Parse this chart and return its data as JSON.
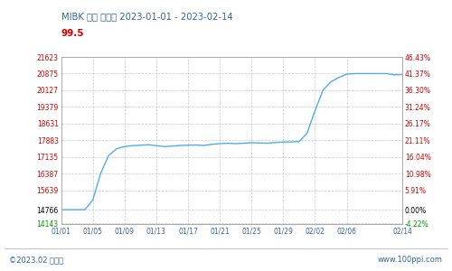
{
  "title": "MIBK 国内 混合价 2023-01-01 - 2023-02-14",
  "subtitle": "99.5",
  "left_yticks": [
    14143,
    14766,
    15639,
    16387,
    17135,
    17883,
    18631,
    19379,
    20127,
    20875,
    21623
  ],
  "right_yticks_pct": [
    "-4.22%",
    "0.00%",
    "5.91%",
    "10.98%",
    "16.04%",
    "21.11%",
    "26.17%",
    "31.24%",
    "36.30%",
    "41.37%",
    "46.43%"
  ],
  "right_yticks_val": [
    -4.22,
    0.0,
    5.91,
    10.98,
    16.04,
    21.11,
    26.17,
    31.24,
    36.3,
    41.37,
    46.43
  ],
  "xtick_labels": [
    "01/01",
    "01/05",
    "01/09",
    "01/13",
    "01/17",
    "01/21",
    "01/25",
    "01/29",
    "02/02",
    "02/06",
    "02/14"
  ],
  "base_value": 14766,
  "x_data": [
    0,
    1,
    2,
    3,
    4,
    5,
    6,
    7,
    8,
    9,
    10,
    11,
    12,
    13,
    14,
    15,
    16,
    17,
    18,
    19,
    20,
    21,
    22,
    23,
    24,
    25,
    26,
    27,
    28,
    29,
    30,
    31,
    32,
    33,
    34,
    35,
    36,
    37,
    38,
    39,
    40,
    41,
    42,
    43
  ],
  "price_data": [
    14766,
    14766,
    14766,
    14766,
    15200,
    16400,
    17200,
    17500,
    17600,
    17640,
    17660,
    17680,
    17640,
    17600,
    17620,
    17650,
    17660,
    17670,
    17650,
    17700,
    17730,
    17750,
    17730,
    17750,
    17770,
    17760,
    17750,
    17780,
    17800,
    17810,
    17820,
    18200,
    19200,
    20127,
    20500,
    20700,
    20850,
    20875,
    20875,
    20875,
    20875,
    20875,
    20820,
    20830
  ],
  "xtick_positions": [
    0,
    4,
    8,
    12,
    16,
    20,
    24,
    28,
    32,
    36,
    43
  ],
  "line_color": "#4daee8",
  "bg_color": "#ffffff",
  "plot_bg_color": "#ffffff",
  "grid_color": "#c8c8c8",
  "title_color": "#336699",
  "subtitle_color": "#cc0000",
  "left_tick_color_base": "#000000",
  "left_tick_color_other": "#cc0000",
  "left_tick_color_low": "#009900",
  "right_tick_color_pct_neg": "#009900",
  "right_tick_color_pct_pos": "#cc0000",
  "right_tick_color_zero": "#000000",
  "footer_left": "©2023.02 生意社",
  "footer_right": "www.100ppi.com",
  "footer_color": "#336699",
  "border_color": "#aaaaaa"
}
